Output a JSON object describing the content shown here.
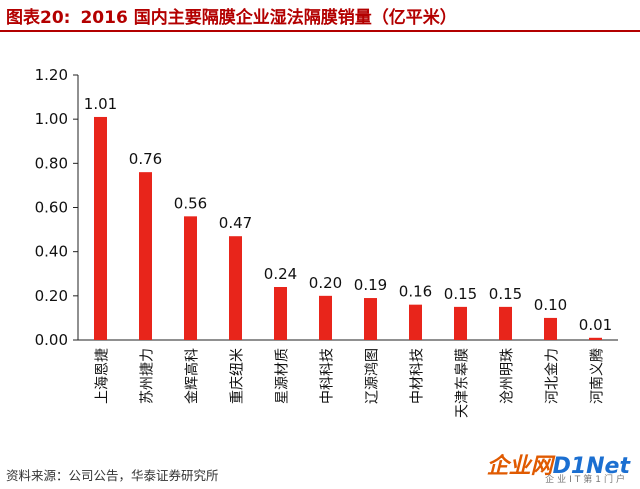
{
  "header": {
    "figure_label": "图表20:",
    "title": "2016 国内主要隔膜企业湿法隔膜销量（亿平米）"
  },
  "footer": {
    "source": "资料来源：公司公告，华泰证券研究所"
  },
  "watermark": {
    "main_a": "企业网",
    "main_b": "D1Net",
    "sub": "企业IT第1门户"
  },
  "chart_data": {
    "type": "bar",
    "title": "2016 国内主要隔膜企业湿法隔膜销量（亿平米）",
    "categories": [
      "上海恩捷",
      "苏州捷力",
      "金辉高科",
      "重庆纽米",
      "星源材质",
      "中科科技",
      "辽源鸿图",
      "中材科技",
      "天津东皋膜",
      "沧州明珠",
      "河北金力",
      "河南义腾"
    ],
    "values": [
      1.01,
      0.76,
      0.56,
      0.47,
      0.24,
      0.2,
      0.19,
      0.16,
      0.15,
      0.15,
      0.1,
      0.01
    ],
    "value_labels": [
      "1.01",
      "0.76",
      "0.56",
      "0.47",
      "0.24",
      "0.20",
      "0.19",
      "0.16",
      "0.15",
      "0.15",
      "0.10",
      "0.01"
    ],
    "yticks": [
      "0.00",
      "0.20",
      "0.40",
      "0.60",
      "0.80",
      "1.00",
      "1.20"
    ],
    "ylim": [
      0,
      1.2
    ],
    "xlabel": "",
    "ylabel": "",
    "grid": false,
    "bar_color": "#e8251b"
  }
}
